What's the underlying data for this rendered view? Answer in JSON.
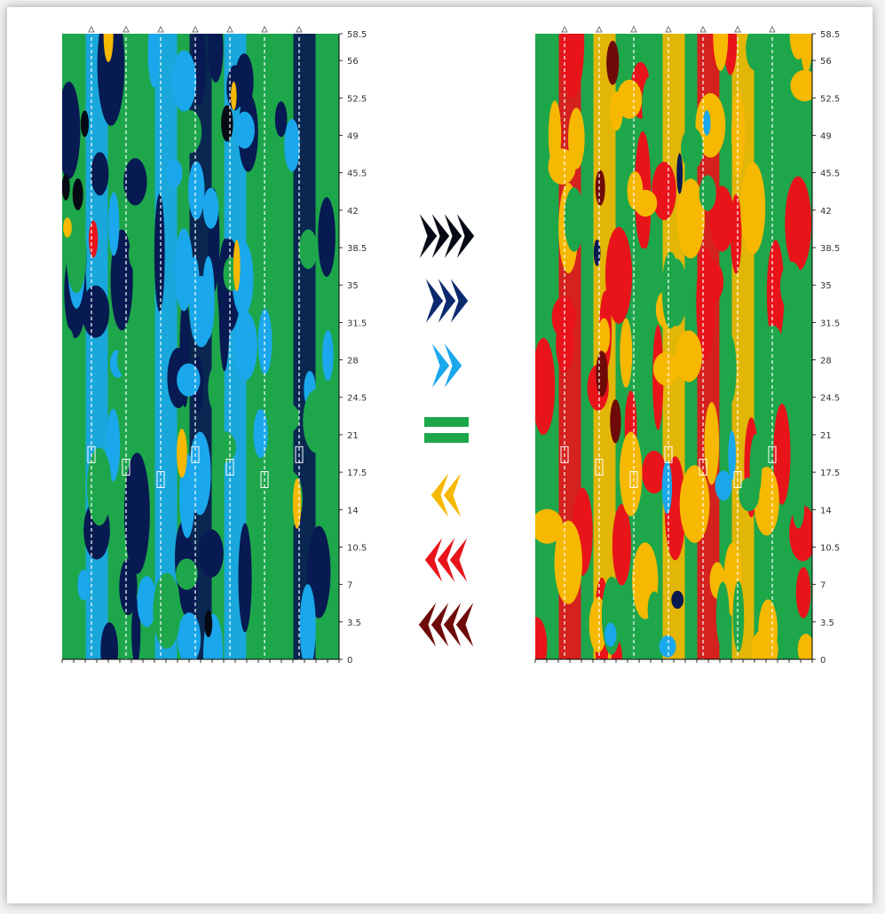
{
  "palette": {
    "very_dark": "#060a14",
    "dark_blue": "#071a52",
    "light_blue": "#1aa7ec",
    "green": "#1ea64b",
    "yellow": "#f6b800",
    "red": "#e8141a",
    "dark_red": "#6e0a08",
    "axis": "#000000",
    "wells": "#ffffff"
  },
  "chart_data": [
    {
      "type": "heatmap",
      "title": "",
      "xlabel": "",
      "ylabel": "",
      "ylim": [
        0,
        58.5
      ],
      "y_ticks": [
        "58.5",
        "56",
        "52.5",
        "49",
        "45.5",
        "42",
        "38.5",
        "35",
        "31.5",
        "28",
        "24.5",
        "21",
        "17.5",
        "14",
        "10.5",
        "7",
        "3.5",
        "0"
      ],
      "well_count": 7,
      "levels": [
        "light_blue",
        "green",
        "light_blue",
        "dark_blue",
        "light_blue",
        "green",
        "dark_blue"
      ],
      "dominant": "green",
      "legend_position": "none"
    },
    {
      "type": "heatmap",
      "title": "",
      "xlabel": "",
      "ylabel": "",
      "ylim": [
        0,
        58.5
      ],
      "y_ticks": [
        "58.5",
        "56",
        "52.5",
        "49",
        "45.5",
        "42",
        "38.5",
        "35",
        "31.5",
        "28",
        "24.5",
        "21",
        "17.5",
        "14",
        "10.5",
        "7",
        "3.5",
        "0"
      ],
      "well_count": 7,
      "levels": [
        "red",
        "yellow",
        "green",
        "yellow",
        "red",
        "yellow",
        "green"
      ],
      "dominant": "green",
      "legend_position": "none"
    }
  ],
  "legend": {
    "position": "center",
    "items": [
      {
        "symbol": "chevron-right-4",
        "color": "#060a14"
      },
      {
        "symbol": "chevron-right-3",
        "color": "#0b2a6e"
      },
      {
        "symbol": "chevron-right-2",
        "color": "#1aa7ec"
      },
      {
        "symbol": "equals",
        "color": "#1ea64b"
      },
      {
        "symbol": "chevron-left-2",
        "color": "#f6b800"
      },
      {
        "symbol": "chevron-left-3",
        "color": "#e8141a"
      },
      {
        "symbol": "chevron-left-4",
        "color": "#6e0a08"
      }
    ]
  }
}
